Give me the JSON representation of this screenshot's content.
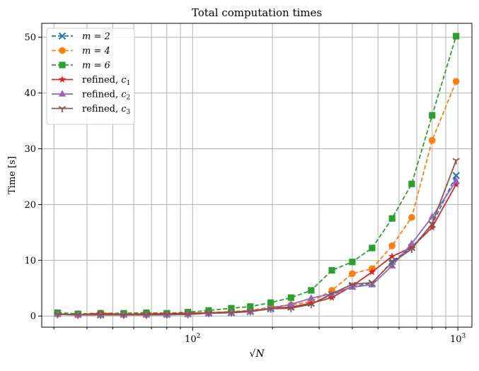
{
  "chart_data": {
    "type": "line",
    "title": "Total computation times",
    "xlabel": "√N",
    "ylabel": "Time [s]",
    "xscale": "log",
    "xlim": [
      27,
      1130
    ],
    "ylim": [
      -2,
      52.5
    ],
    "yticks": [
      0,
      10,
      20,
      30,
      40,
      50
    ],
    "xtick_labels": [
      {
        "value": 100,
        "base": "10",
        "exp": "2"
      },
      {
        "value": 1000,
        "base": "10",
        "exp": "3"
      }
    ],
    "grid": true,
    "legend_position": "top-left",
    "series": [
      {
        "name": "m = 2",
        "color": "#1f77b4",
        "dash": true,
        "marker": "x",
        "points": [
          [
            31,
            0.5
          ],
          [
            37,
            0.3
          ],
          [
            45,
            0.2
          ],
          [
            55,
            0.3
          ],
          [
            67,
            0.3
          ],
          [
            80,
            0.3
          ],
          [
            96,
            0.4
          ],
          [
            115,
            0.5
          ],
          [
            140,
            0.6
          ],
          [
            165,
            0.8
          ],
          [
            197,
            1.3
          ],
          [
            235,
            1.6
          ],
          [
            280,
            2.3
          ],
          [
            335,
            3.8
          ],
          [
            400,
            5.3
          ],
          [
            475,
            5.9
          ],
          [
            565,
            9.8
          ],
          [
            670,
            12.3
          ],
          [
            800,
            16.4
          ],
          [
            985,
            25.2
          ]
        ]
      },
      {
        "name": "m = 4",
        "color": "#ff7f0e",
        "dash": true,
        "marker": "circle",
        "points": [
          [
            31,
            0.4
          ],
          [
            37,
            0.3
          ],
          [
            45,
            0.4
          ],
          [
            55,
            0.3
          ],
          [
            67,
            0.4
          ],
          [
            80,
            0.4
          ],
          [
            96,
            0.5
          ],
          [
            115,
            0.6
          ],
          [
            140,
            0.8
          ],
          [
            165,
            1.0
          ],
          [
            197,
            1.6
          ],
          [
            235,
            2.0
          ],
          [
            280,
            2.6
          ],
          [
            335,
            4.6
          ],
          [
            400,
            7.6
          ],
          [
            475,
            8.5
          ],
          [
            565,
            12.6
          ],
          [
            670,
            17.7
          ],
          [
            800,
            31.5
          ],
          [
            985,
            42.1
          ]
        ]
      },
      {
        "name": "m = 6",
        "color": "#2ca02c",
        "dash": true,
        "marker": "square",
        "points": [
          [
            31,
            0.6
          ],
          [
            37,
            0.4
          ],
          [
            45,
            0.5
          ],
          [
            55,
            0.5
          ],
          [
            67,
            0.6
          ],
          [
            80,
            0.5
          ],
          [
            96,
            0.7
          ],
          [
            115,
            1.0
          ],
          [
            140,
            1.4
          ],
          [
            165,
            1.7
          ],
          [
            197,
            2.4
          ],
          [
            235,
            3.3
          ],
          [
            280,
            4.6
          ],
          [
            335,
            8.2
          ],
          [
            400,
            9.7
          ],
          [
            475,
            12.2
          ],
          [
            565,
            17.5
          ],
          [
            670,
            23.7
          ],
          [
            800,
            36.0
          ],
          [
            985,
            50.2
          ]
        ]
      },
      {
        "name": "refined, c1",
        "label_base": "refined, ",
        "label_var": "c",
        "label_sub": "1",
        "color": "#d62728",
        "dash": false,
        "marker": "star",
        "points": [
          [
            31,
            0.4
          ],
          [
            37,
            0.2
          ],
          [
            45,
            0.5
          ],
          [
            55,
            0.3
          ],
          [
            67,
            0.4
          ],
          [
            80,
            0.4
          ],
          [
            96,
            0.5
          ],
          [
            115,
            0.6
          ],
          [
            140,
            0.7
          ],
          [
            165,
            0.9
          ],
          [
            197,
            1.4
          ],
          [
            235,
            1.6
          ],
          [
            280,
            2.3
          ],
          [
            335,
            3.3
          ],
          [
            400,
            5.4
          ],
          [
            475,
            7.9
          ],
          [
            565,
            10.7
          ],
          [
            670,
            12.3
          ],
          [
            800,
            15.9
          ],
          [
            985,
            23.6
          ]
        ]
      },
      {
        "name": "refined, c2",
        "label_base": "refined, ",
        "label_var": "c",
        "label_sub": "2",
        "color": "#9467bd",
        "dash": false,
        "marker": "triangle",
        "points": [
          [
            31,
            0.3
          ],
          [
            37,
            0.2
          ],
          [
            45,
            0.2
          ],
          [
            55,
            0.2
          ],
          [
            67,
            0.2
          ],
          [
            80,
            0.2
          ],
          [
            96,
            0.3
          ],
          [
            115,
            0.5
          ],
          [
            140,
            0.6
          ],
          [
            165,
            0.8
          ],
          [
            197,
            1.4
          ],
          [
            235,
            2.1
          ],
          [
            280,
            3.2
          ],
          [
            335,
            4.0
          ],
          [
            400,
            5.2
          ],
          [
            475,
            5.6
          ],
          [
            565,
            9.0
          ],
          [
            670,
            13.0
          ],
          [
            800,
            17.8
          ],
          [
            985,
            24.2
          ]
        ]
      },
      {
        "name": "refined, c3",
        "label_base": "refined, ",
        "label_var": "c",
        "label_sub": "3",
        "color": "#8c564b",
        "dash": false,
        "marker": "tri_down",
        "points": [
          [
            31,
            0.3
          ],
          [
            37,
            0.2
          ],
          [
            45,
            0.2
          ],
          [
            55,
            0.2
          ],
          [
            67,
            0.2
          ],
          [
            80,
            0.3
          ],
          [
            96,
            0.3
          ],
          [
            115,
            0.5
          ],
          [
            140,
            0.6
          ],
          [
            165,
            0.8
          ],
          [
            197,
            1.3
          ],
          [
            235,
            1.4
          ],
          [
            280,
            2.1
          ],
          [
            335,
            4.0
          ],
          [
            400,
            5.7
          ],
          [
            475,
            6.0
          ],
          [
            565,
            9.6
          ],
          [
            670,
            12.0
          ],
          [
            800,
            16.6
          ],
          [
            985,
            27.9
          ]
        ]
      }
    ]
  }
}
